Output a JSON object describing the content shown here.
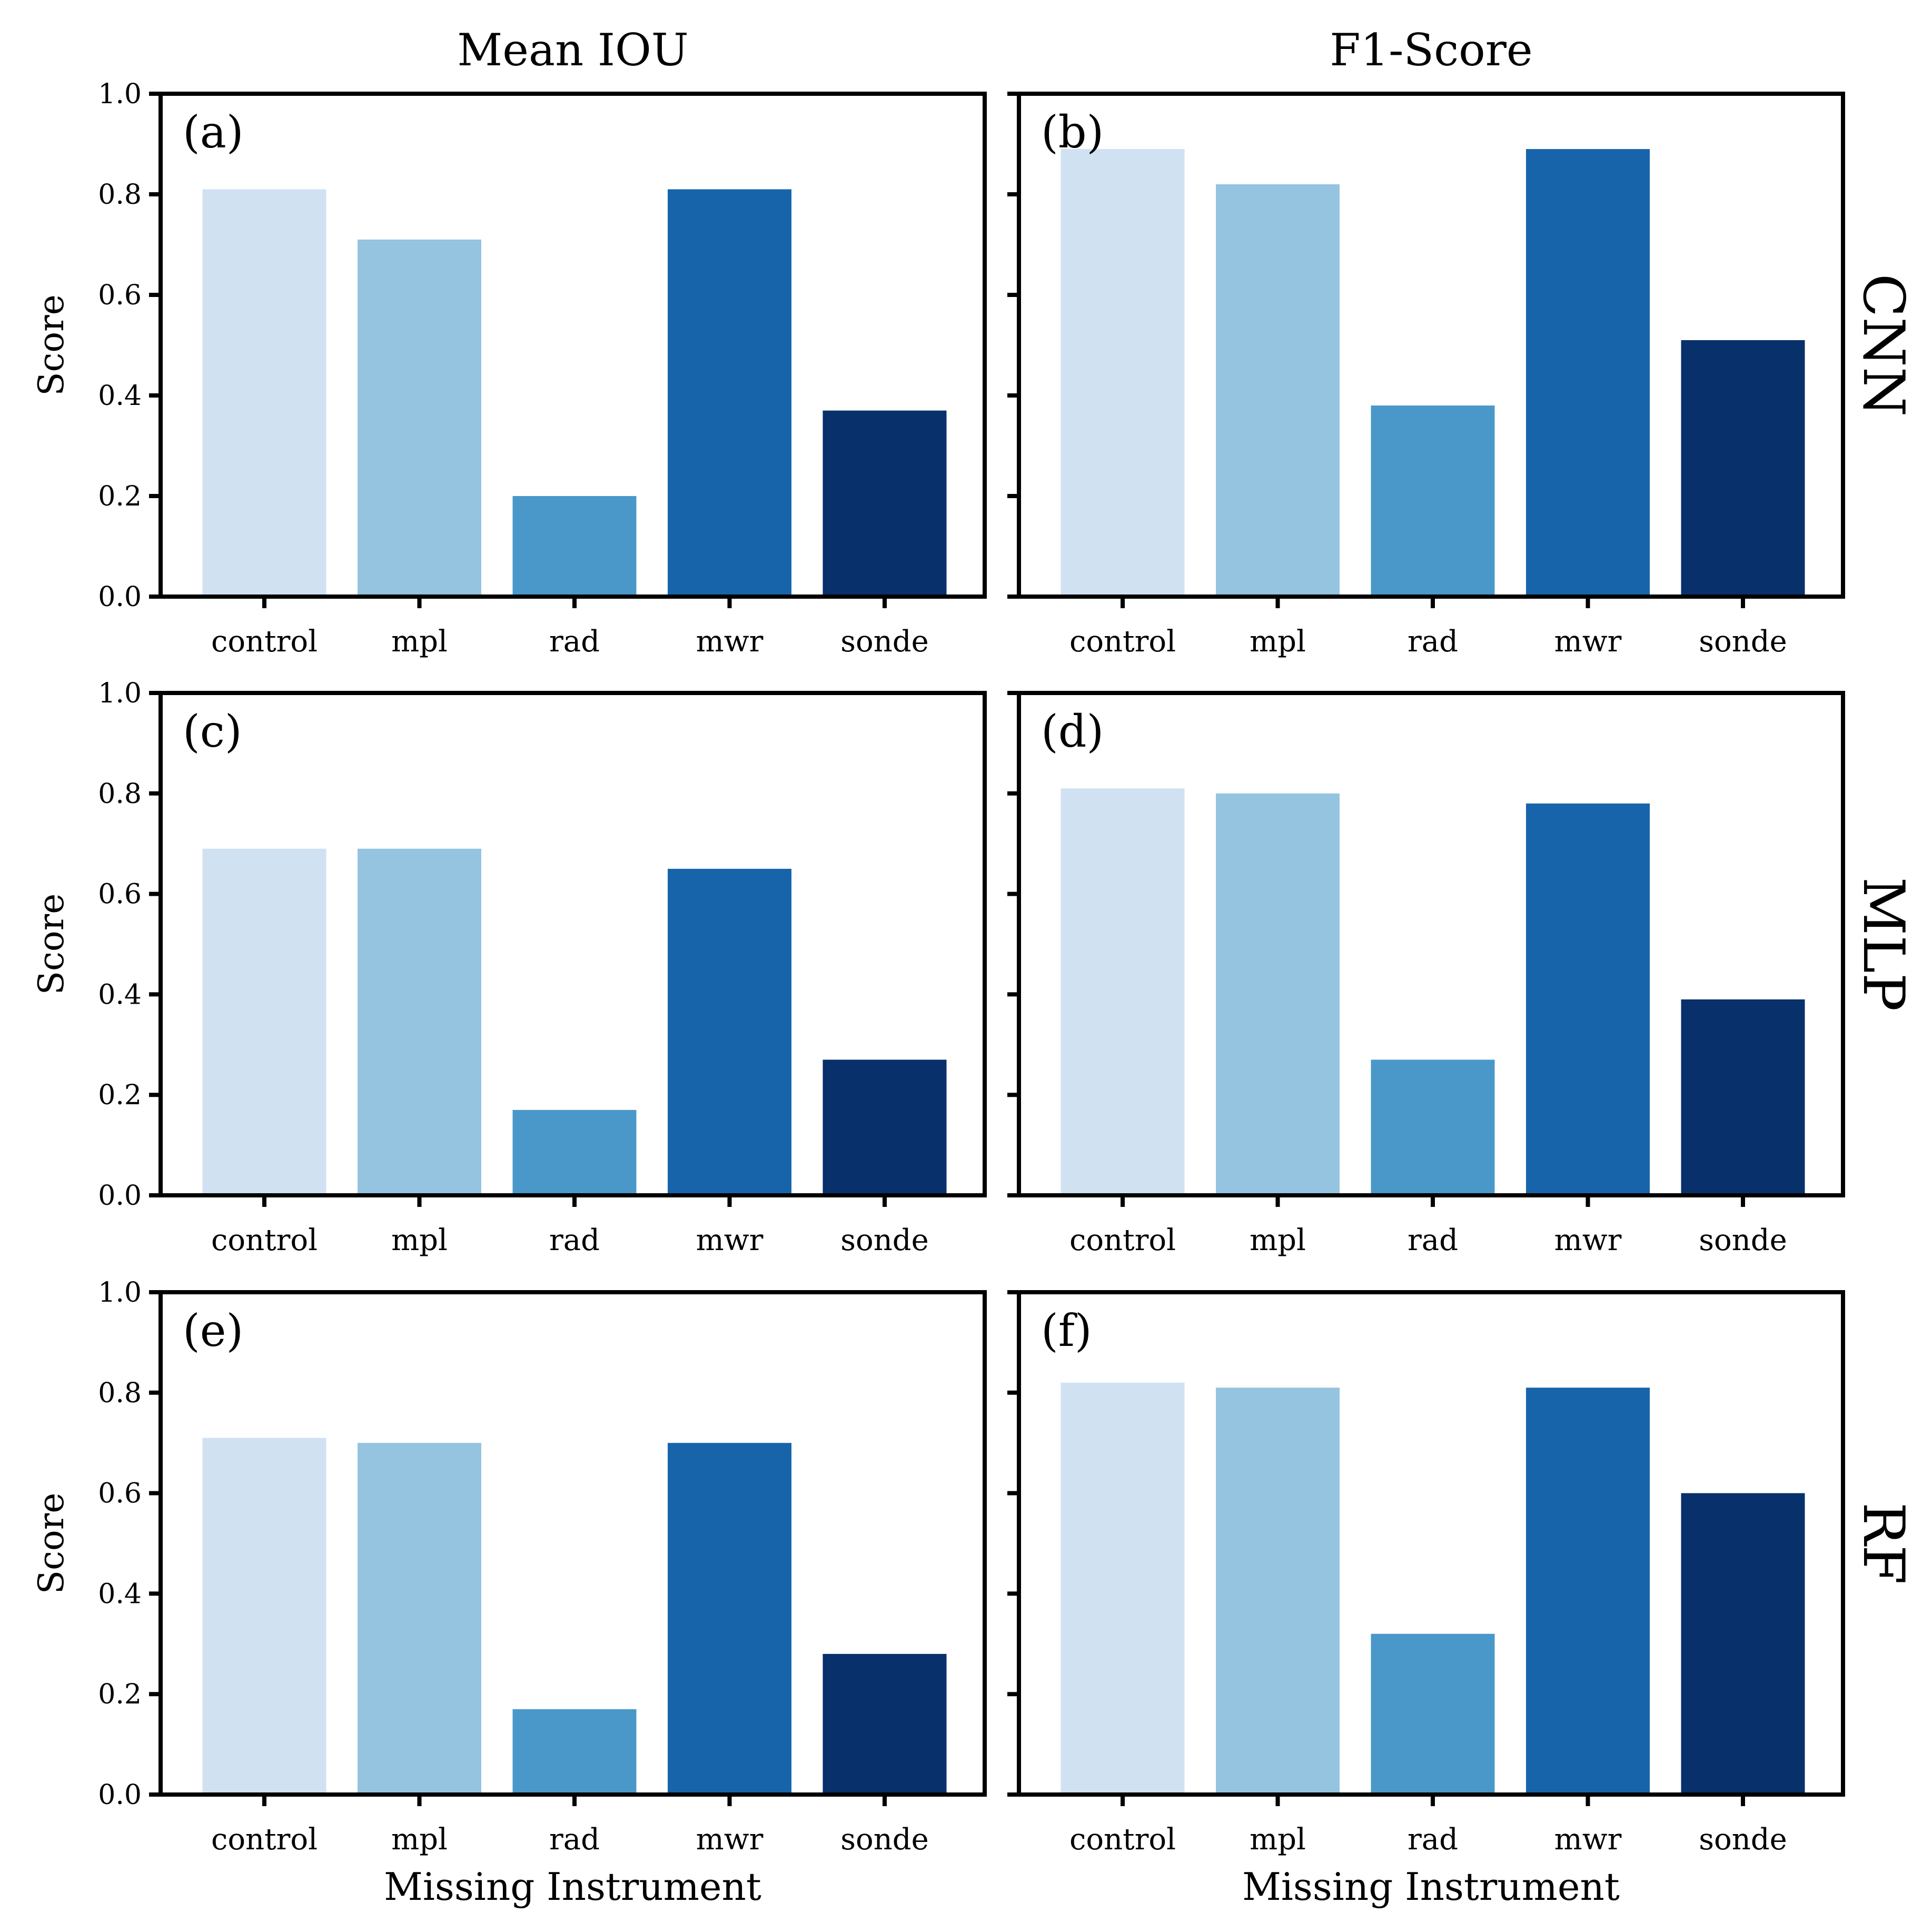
{
  "colors": [
    "#d0e1f2",
    "#94c4df",
    "#4a98c9",
    "#1764ab",
    "#08306b"
  ],
  "column_titles": [
    "Mean IOU",
    "F1-Score"
  ],
  "row_labels": [
    "CNN",
    "MLP",
    "RF"
  ],
  "ylabel": "Score",
  "xlabel": "Missing Instrument",
  "chart_data": [
    {
      "type": "bar",
      "panel": "(a)",
      "categories": [
        "control",
        "mpl",
        "rad",
        "mwr",
        "sonde"
      ],
      "values": [
        0.81,
        0.71,
        0.2,
        0.81,
        0.37
      ],
      "ylim": [
        0,
        1.0
      ],
      "yticks": [
        "0.0",
        "0.2",
        "0.4",
        "0.6",
        "0.8",
        "1.0"
      ],
      "grid": false
    },
    {
      "type": "bar",
      "panel": "(b)",
      "categories": [
        "control",
        "mpl",
        "rad",
        "mwr",
        "sonde"
      ],
      "values": [
        0.89,
        0.82,
        0.38,
        0.89,
        0.51
      ],
      "ylim": [
        0,
        1.0
      ],
      "grid": false
    },
    {
      "type": "bar",
      "panel": "(c)",
      "categories": [
        "control",
        "mpl",
        "rad",
        "mwr",
        "sonde"
      ],
      "values": [
        0.69,
        0.69,
        0.17,
        0.65,
        0.27
      ],
      "ylim": [
        0,
        1.0
      ],
      "yticks": [
        "0.0",
        "0.2",
        "0.4",
        "0.6",
        "0.8",
        "1.0"
      ],
      "grid": false
    },
    {
      "type": "bar",
      "panel": "(d)",
      "categories": [
        "control",
        "mpl",
        "rad",
        "mwr",
        "sonde"
      ],
      "values": [
        0.81,
        0.8,
        0.27,
        0.78,
        0.39
      ],
      "ylim": [
        0,
        1.0
      ],
      "grid": false
    },
    {
      "type": "bar",
      "panel": "(e)",
      "categories": [
        "control",
        "mpl",
        "rad",
        "mwr",
        "sonde"
      ],
      "values": [
        0.71,
        0.7,
        0.17,
        0.7,
        0.28
      ],
      "ylim": [
        0,
        1.0
      ],
      "yticks": [
        "0.0",
        "0.2",
        "0.4",
        "0.6",
        "0.8",
        "1.0"
      ],
      "grid": false
    },
    {
      "type": "bar",
      "panel": "(f)",
      "categories": [
        "control",
        "mpl",
        "rad",
        "mwr",
        "sonde"
      ],
      "values": [
        0.82,
        0.81,
        0.32,
        0.81,
        0.6
      ],
      "ylim": [
        0,
        1.0
      ],
      "grid": false
    }
  ]
}
